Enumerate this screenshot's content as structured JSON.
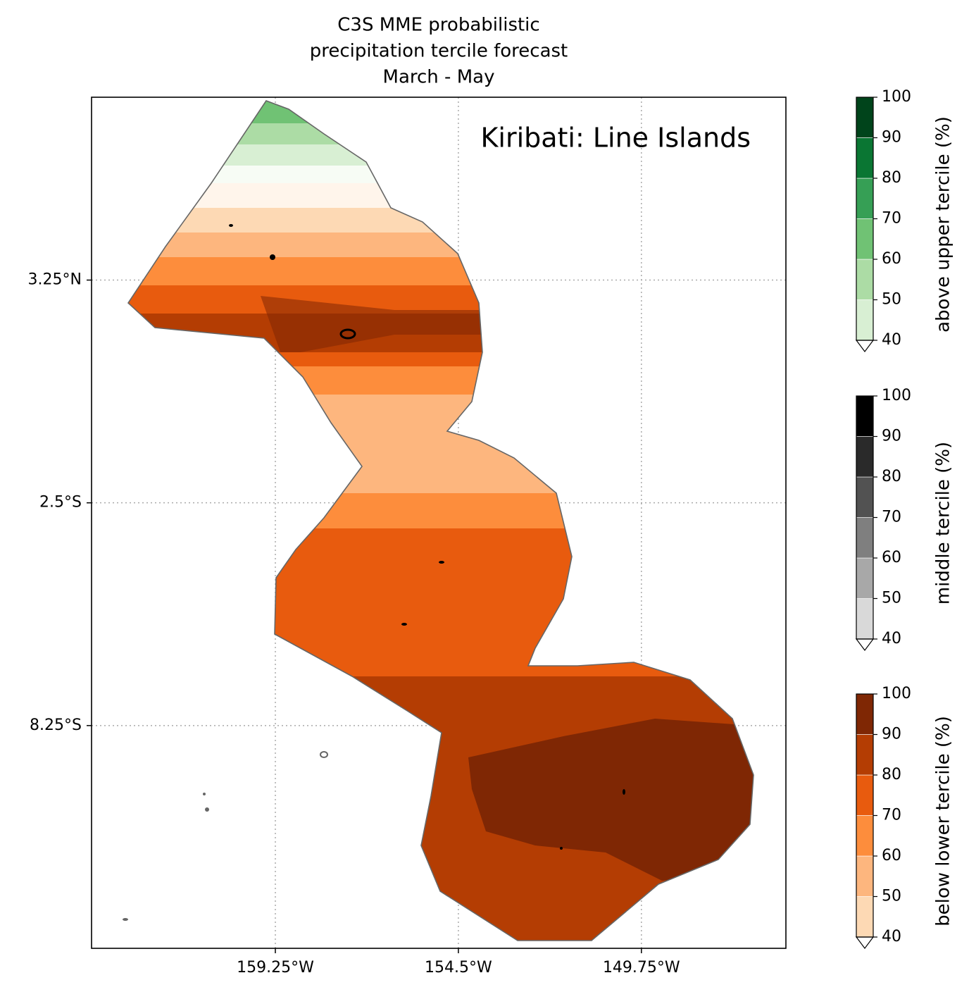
{
  "map": {
    "title": [
      "C3S MME probabilistic",
      "precipitation tercile forecast",
      "March - May"
    ],
    "region_label": "Kiribati: Line Islands",
    "xlim": [
      -164.02,
      -146.0
    ],
    "ylim": [
      -14.0,
      7.97
    ],
    "xticks": [
      {
        "value": -159.25,
        "label": "159.25°W"
      },
      {
        "value": -154.5,
        "label": "154.5°W"
      },
      {
        "value": -149.75,
        "label": "149.75°W"
      }
    ],
    "yticks": [
      {
        "value": 3.25,
        "label": "3.25°N"
      },
      {
        "value": -2.5,
        "label": "2.5°S"
      },
      {
        "value": -8.25,
        "label": "8.25°S"
      }
    ],
    "grid": true,
    "colorbars": [
      {
        "label": "above upper tercile (%)",
        "ticks": [
          40,
          50,
          60,
          70,
          80,
          90,
          100
        ],
        "colors": [
          "#d8efd3",
          "#acdca5",
          "#70c274",
          "#369f55",
          "#0a7633",
          "#00441b"
        ]
      },
      {
        "label": "middle tercile (%)",
        "ticks": [
          40,
          50,
          60,
          70,
          80,
          90,
          100
        ],
        "colors": [
          "#d9d9d9",
          "#a8a8a8",
          "#7f7f7f",
          "#525252",
          "#2a2a2a",
          "#000000"
        ]
      },
      {
        "label": "below lower tercile (%)",
        "ticks": [
          40,
          50,
          60,
          70,
          80,
          90,
          100
        ],
        "colors": [
          "#fdd9b4",
          "#fdb67e",
          "#fd8d3c",
          "#e85b0e",
          "#b43d03",
          "#7f2704"
        ]
      }
    ]
  }
}
